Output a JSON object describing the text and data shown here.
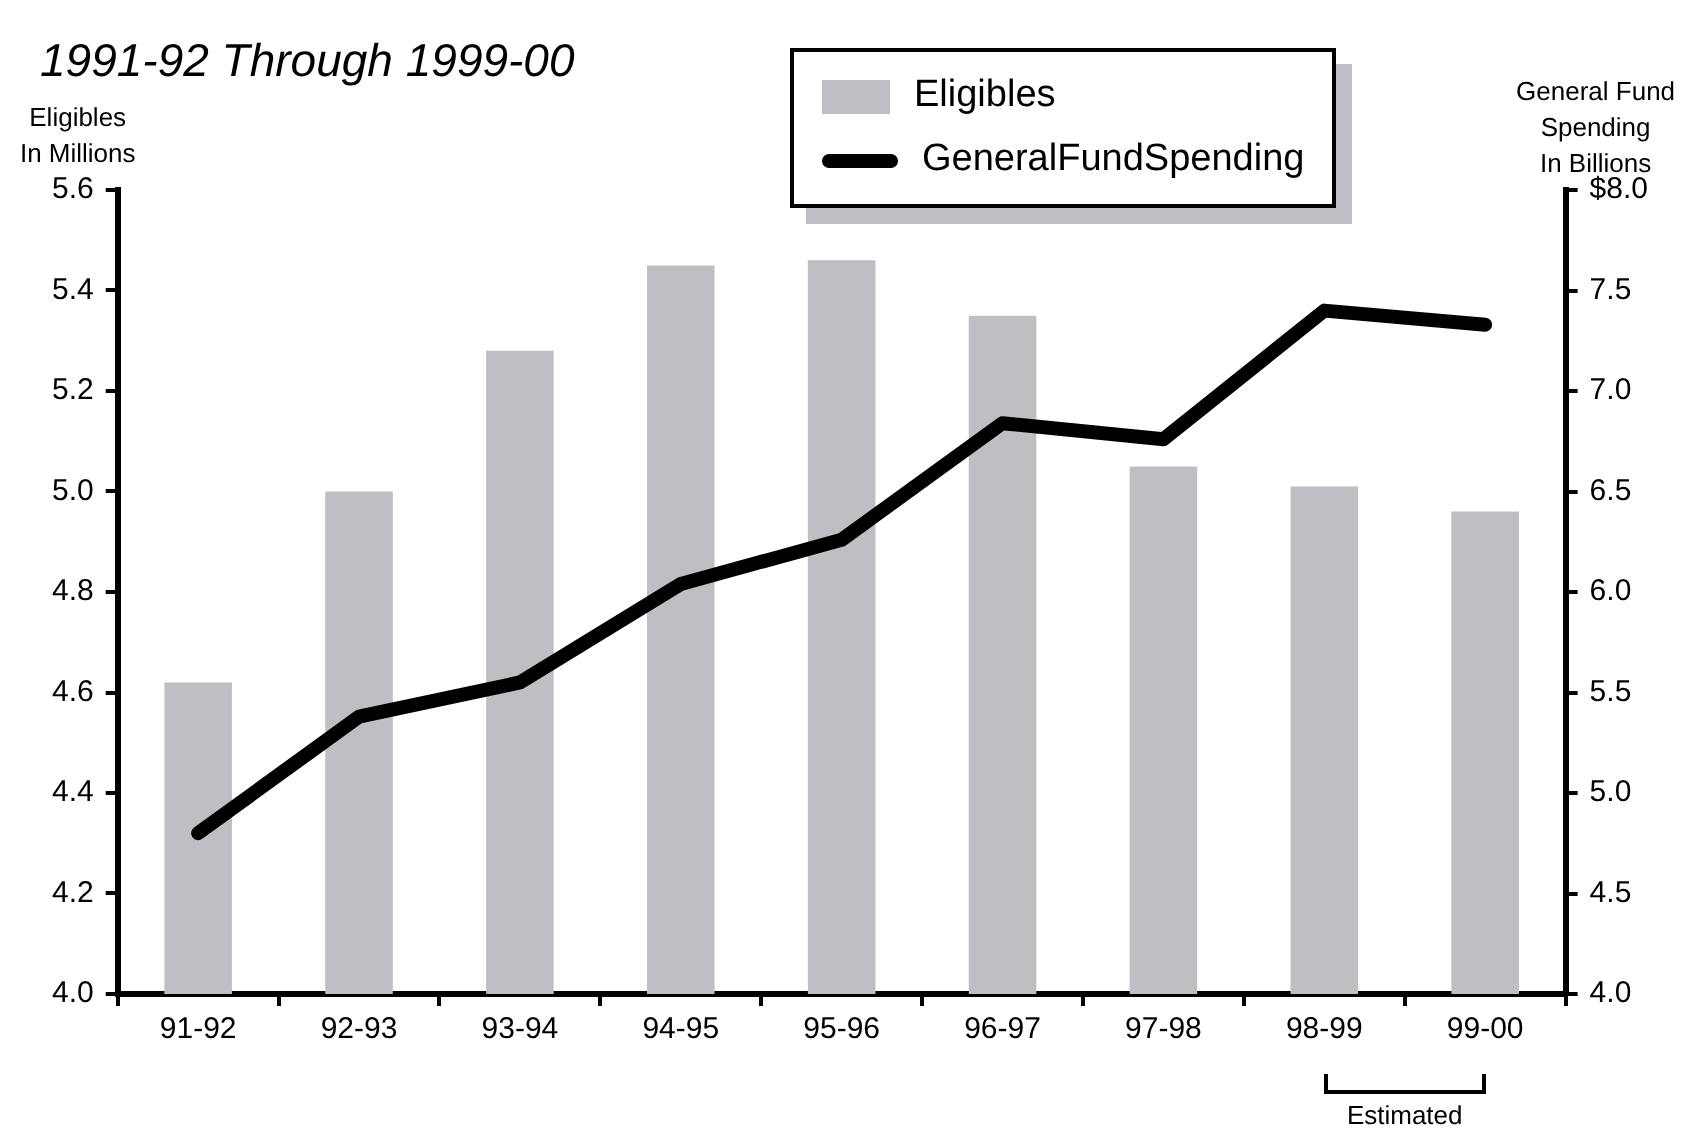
{
  "chart_data": {
    "type": "bar",
    "title": "1991-92 Through 1999-00",
    "ylabel": "Eligibles In Millions",
    "y2label": "General Fund Spending In Billions",
    "categories": [
      "91-92",
      "92-93",
      "93-94",
      "94-95",
      "95-96",
      "96-97",
      "97-98",
      "98-99",
      "99-00"
    ],
    "series": [
      {
        "name": "Eligibles",
        "color": "#bebfc3",
        "values": [
          4.62,
          5.0,
          5.28,
          5.45,
          5.46,
          5.35,
          5.05,
          5.01,
          4.96
        ]
      },
      {
        "name": "GeneralFundSpending",
        "type": "line",
        "axis": "y2",
        "color": "#000000",
        "values": [
          4.8,
          5.38,
          5.55,
          6.04,
          6.26,
          6.84,
          6.76,
          7.4,
          7.33
        ]
      }
    ],
    "ylim": [
      4.0,
      5.6
    ],
    "yticks": [
      {
        "value": 4.0,
        "label": "4.0"
      },
      4.2,
      4.4,
      4.6,
      4.8,
      {
        "value": 5.0,
        "label": "5.0"
      },
      5.2,
      5.4,
      5.6
    ],
    "y2lim": [
      4.0,
      8.0
    ],
    "y2ticks": [
      {
        "value": 4.0,
        "label": "4.0"
      },
      4.5,
      {
        "value": 5.0,
        "label": "5.0"
      },
      5.5,
      {
        "value": 6.0,
        "label": "6.0"
      },
      6.5,
      {
        "value": 7.0,
        "label": "7.0"
      },
      7.5,
      {
        "value": 8.0,
        "label": "$8.0"
      }
    ],
    "annotations": [
      "Estimated"
    ],
    "grid": false,
    "legend": "top",
    "marker": "none",
    "line_style": "solid"
  }
}
